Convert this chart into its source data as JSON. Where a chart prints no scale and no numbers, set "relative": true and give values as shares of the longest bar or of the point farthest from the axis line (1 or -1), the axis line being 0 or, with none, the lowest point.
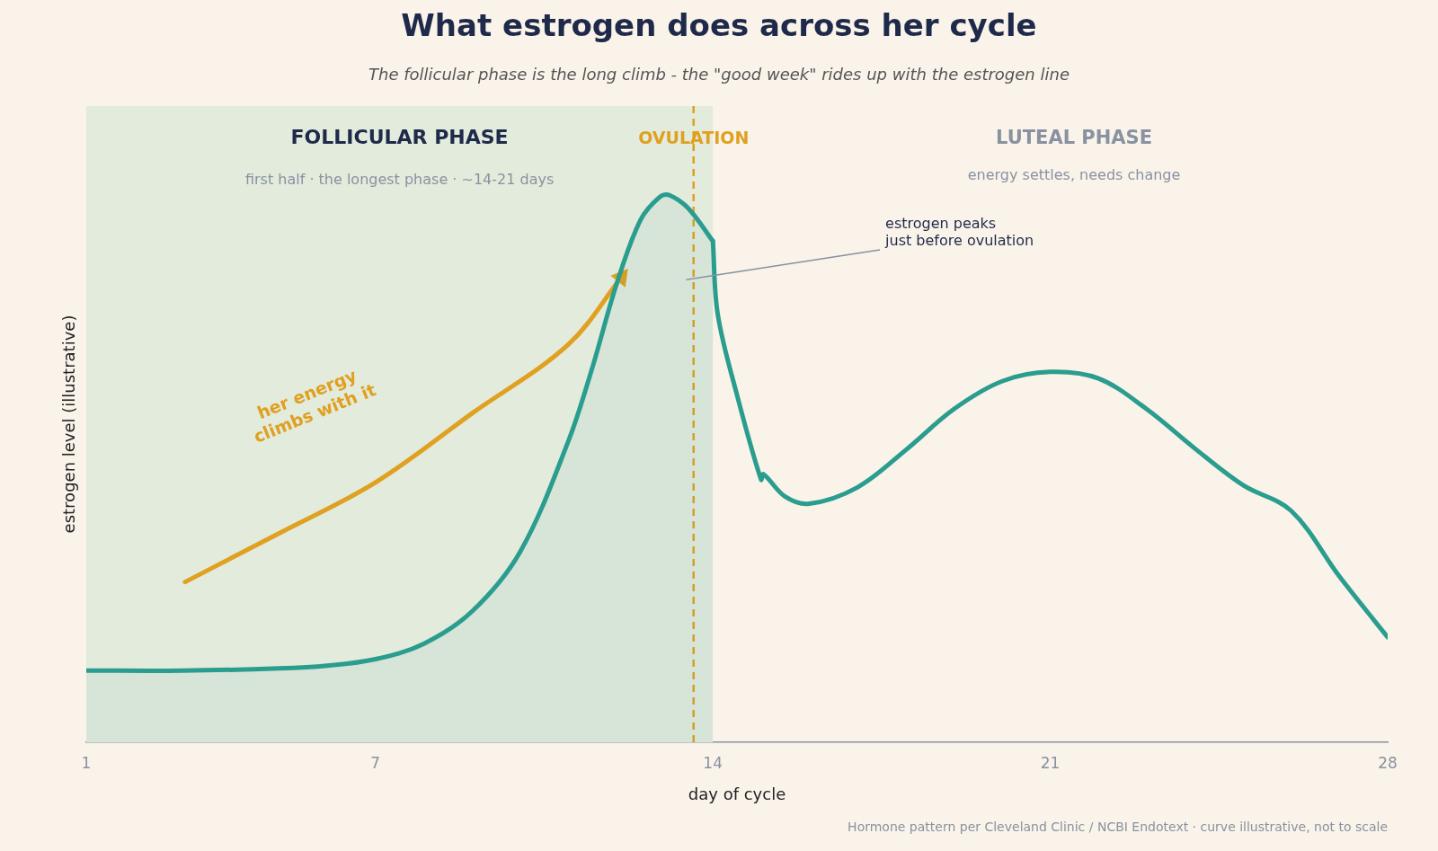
{
  "chart_data": {
    "type": "line",
    "title": "What estrogen does across her cycle",
    "subtitle": "The follicular phase is the long climb - the \"good week\" rides up with the estrogen line",
    "xlabel": "day of cycle",
    "ylabel": "estrogen level (illustrative)",
    "relative": true,
    "xlim": [
      1,
      28
    ],
    "xticks": [
      1,
      7,
      14,
      21,
      28
    ],
    "grid": false,
    "legend": false,
    "series": [
      {
        "type": "area",
        "color": "#2a9d8f",
        "x": [
          1,
          3,
          5,
          6,
          7,
          8,
          9,
          10,
          11,
          11.5,
          12,
          12.5,
          12.9,
          13.1,
          13.5,
          14
        ],
        "values": [
          0.131,
          0.131,
          0.135,
          0.14,
          0.152,
          0.18,
          0.239,
          0.348,
          0.55,
          0.685,
          0.837,
          0.955,
          0.997,
          1,
          0.975,
          0.916
        ]
      },
      {
        "type": "line",
        "color": "#2a9d8f",
        "x": [
          14,
          14.1,
          14.5,
          15,
          15.05,
          15.5,
          16,
          17,
          18,
          19,
          20,
          21,
          22,
          23,
          24,
          25,
          26,
          27,
          28
        ],
        "values": [
          0.916,
          0.783,
          0.635,
          0.48,
          0.49,
          0.449,
          0.436,
          0.466,
          0.534,
          0.609,
          0.66,
          0.677,
          0.665,
          0.609,
          0.537,
          0.47,
          0.423,
          0.303,
          0.192
        ]
      },
      {
        "color": "#e0a020",
        "x": [
          3.05,
          5,
          7,
          9,
          11,
          12.1
        ],
        "values": [
          0.293,
          0.382,
          0.475,
          0.601,
          0.727,
          0.85
        ]
      }
    ],
    "bands": [
      {
        "axis": "x",
        "from": 1,
        "to": 14,
        "label": "FOLLICULAR PHASE",
        "color": "#e3ebdd"
      }
    ],
    "ref_lines": [
      {
        "axis": "x",
        "value": 13.6,
        "label": "OVULATION",
        "color": "#e0a020",
        "line_style": "dashed"
      }
    ],
    "annotations": [
      "first half · the longest phase · ~14-21 days",
      "LUTEAL PHASE",
      "energy settles, needs change",
      "estrogen peaks\njust before ovulation",
      "her energy\nclimbs with it",
      "Hormone pattern per Cleveland Clinic / NCBI Endotext · curve illustrative, not to scale"
    ]
  }
}
